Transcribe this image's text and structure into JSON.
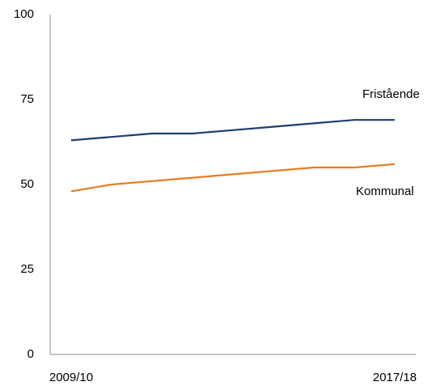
{
  "chart_data": {
    "type": "line",
    "categories": [
      "2009/10",
      null,
      null,
      null,
      null,
      null,
      null,
      null,
      "2017/18"
    ],
    "series": [
      {
        "name": "Fristående",
        "color": "#1f3d6d",
        "values": [
          63,
          64,
          65,
          65,
          66,
          67,
          68,
          69,
          69
        ]
      },
      {
        "name": "Kommunal",
        "color": "#e57c1f",
        "values": [
          48,
          50,
          51,
          52,
          53,
          54,
          55,
          55,
          56
        ]
      }
    ],
    "ylim": [
      0,
      100
    ],
    "yticks": [
      0,
      25,
      50,
      75,
      100
    ],
    "grid": false
  }
}
